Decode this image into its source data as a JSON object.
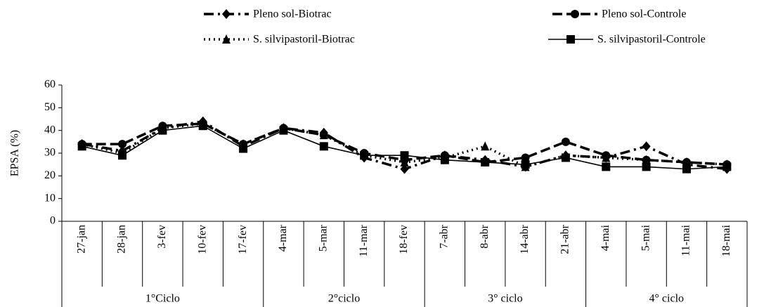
{
  "chart_data": {
    "type": "line",
    "ylabel": "EPSA (%)",
    "ylim": [
      0,
      60
    ],
    "yticks": [
      0,
      10,
      20,
      30,
      40,
      50,
      60
    ],
    "groups": [
      {
        "name": "1°Ciclo",
        "categories": [
          "27-jan",
          "28-jan",
          "3-fev",
          "10-fev",
          "17-fev"
        ]
      },
      {
        "name": "2°ciclo",
        "categories": [
          "4-mar",
          "5-mar",
          "11-mar",
          "18-fev"
        ]
      },
      {
        "name": "3° ciclo",
        "categories": [
          "7-abr",
          "8-abr",
          "14-abr",
          "21-abr"
        ]
      },
      {
        "name": "4° ciclo",
        "categories": [
          "4-mai",
          "5-mai",
          "11-mai",
          "18-mai"
        ]
      }
    ],
    "series": [
      {
        "name": "Pleno sol-Biotrac",
        "color": "#000000",
        "style": "dashdot",
        "marker": "diamond",
        "values": [
          34,
          31,
          41,
          44,
          33,
          41,
          39,
          28,
          23,
          29,
          27,
          24,
          29,
          28,
          33,
          25,
          23
        ]
      },
      {
        "name": "Pleno sol-Controle",
        "color": "#000000",
        "style": "dashed",
        "marker": "circle",
        "values": [
          34,
          34,
          42,
          43,
          34,
          41,
          38,
          30,
          27,
          29,
          26,
          28,
          35,
          29,
          27,
          26,
          25
        ]
      },
      {
        "name": "S. silvipastoril-Biotrac",
        "color": "#000000",
        "style": "dotted",
        "marker": "triangle",
        "values": [
          34,
          30,
          41,
          43,
          34,
          41,
          38,
          29,
          26,
          28,
          33,
          24,
          29,
          28,
          27,
          26,
          25
        ]
      },
      {
        "name": "S. silvipastoril-Controle",
        "color": "#000000",
        "style": "solid",
        "marker": "square",
        "values": [
          33,
          29,
          40,
          42,
          32,
          40,
          33,
          29,
          29,
          27,
          26,
          25,
          28,
          24,
          24,
          23,
          24
        ]
      }
    ]
  }
}
